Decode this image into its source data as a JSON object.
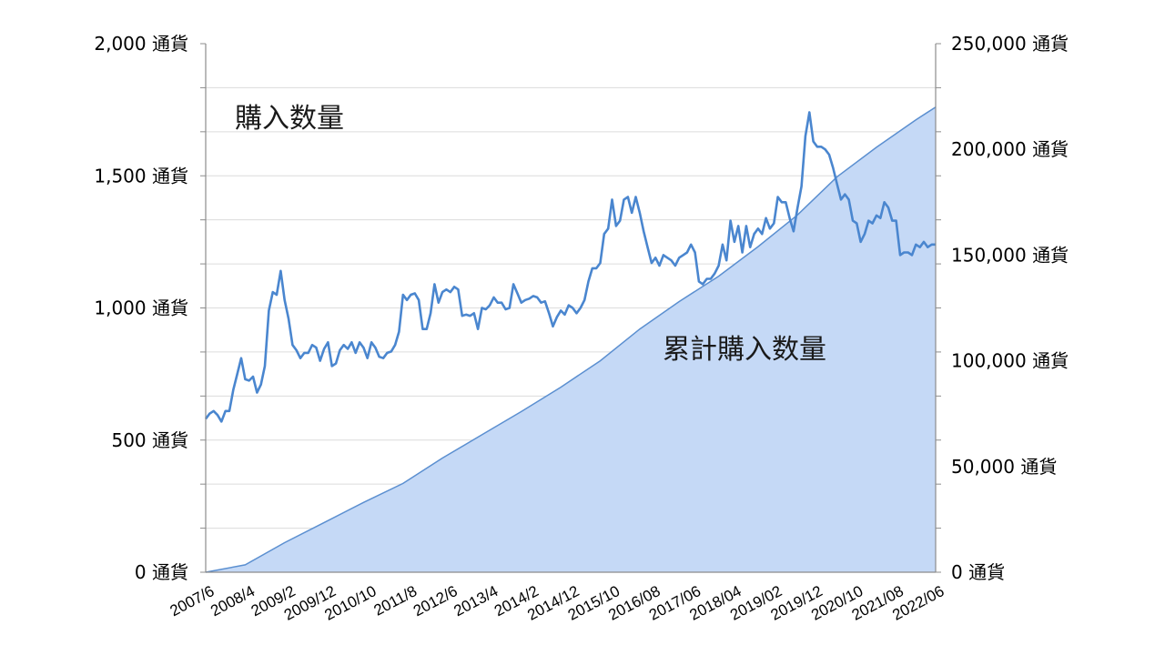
{
  "chart_data": {
    "type": "line",
    "secondary_type": "area",
    "x_tick_labels": [
      "2007/6",
      "2008/4",
      "2009/2",
      "2009/12",
      "2010/10",
      "2011/8",
      "2012/6",
      "2013/4",
      "2014/2",
      "2014/12",
      "2015/10",
      "2016/08",
      "2017/06",
      "2018/04",
      "2019/02",
      "2019/12",
      "2020/10",
      "2021/08",
      "2022/06"
    ],
    "x_range": [
      "2007/6",
      "2023/01"
    ],
    "left_axis": {
      "ticks": [
        {
          "value": 0,
          "label": "0 通貨"
        },
        {
          "value": 500,
          "label": "500 通貨"
        },
        {
          "value": 1000,
          "label": "1,000 通貨"
        },
        {
          "value": 1500,
          "label": "1,500 通貨"
        },
        {
          "value": 2000,
          "label": "2,000 通貨"
        }
      ],
      "ylim": [
        0,
        2000
      ],
      "minor_gridlines_step": 166.67
    },
    "right_axis": {
      "ticks": [
        {
          "value": 0,
          "label": "0 通貨"
        },
        {
          "value": 50000,
          "label": "50,000 通貨"
        },
        {
          "value": 100000,
          "label": "100,000 通貨"
        },
        {
          "value": 150000,
          "label": "150,000 通貨"
        },
        {
          "value": 200000,
          "label": "200,000 通貨"
        },
        {
          "value": 250000,
          "label": "250,000 通貨"
        }
      ],
      "ylim": [
        0,
        250000
      ]
    },
    "annotations": [
      {
        "text": "購入数量",
        "series": "monthly"
      },
      {
        "text": "累計購入数量",
        "series": "cumulative"
      }
    ],
    "colors": {
      "line": "#4a86cf",
      "area_fill": "#c5d9f6",
      "area_stroke": "#5b8fd0",
      "grid": "#dcdcdc",
      "axis": "#8c8c8c"
    },
    "series": [
      {
        "key": "monthly",
        "axis": "left",
        "values": [
          [
            0,
            580
          ],
          [
            1,
            600
          ],
          [
            2,
            610
          ],
          [
            3,
            595
          ],
          [
            4,
            570
          ],
          [
            5,
            610
          ],
          [
            6,
            610
          ],
          [
            7,
            690
          ],
          [
            8,
            750
          ],
          [
            9,
            810
          ],
          [
            10,
            730
          ],
          [
            11,
            725
          ],
          [
            12,
            740
          ],
          [
            13,
            680
          ],
          [
            14,
            710
          ],
          [
            15,
            780
          ],
          [
            16,
            990
          ],
          [
            17,
            1060
          ],
          [
            18,
            1050
          ],
          [
            19,
            1140
          ],
          [
            20,
            1030
          ],
          [
            21,
            960
          ],
          [
            22,
            860
          ],
          [
            23,
            840
          ],
          [
            24,
            810
          ],
          [
            25,
            830
          ],
          [
            26,
            830
          ],
          [
            27,
            860
          ],
          [
            28,
            850
          ],
          [
            29,
            800
          ],
          [
            30,
            845
          ],
          [
            31,
            870
          ],
          [
            32,
            780
          ],
          [
            33,
            790
          ],
          [
            34,
            840
          ],
          [
            35,
            860
          ],
          [
            36,
            845
          ],
          [
            37,
            870
          ],
          [
            38,
            830
          ],
          [
            39,
            870
          ],
          [
            40,
            850
          ],
          [
            41,
            810
          ],
          [
            42,
            870
          ],
          [
            43,
            850
          ],
          [
            44,
            815
          ],
          [
            45,
            810
          ],
          [
            46,
            830
          ],
          [
            47,
            835
          ],
          [
            48,
            860
          ],
          [
            49,
            910
          ],
          [
            50,
            1050
          ],
          [
            51,
            1030
          ],
          [
            52,
            1050
          ],
          [
            53,
            1055
          ],
          [
            54,
            1030
          ],
          [
            55,
            920
          ],
          [
            56,
            920
          ],
          [
            57,
            980
          ],
          [
            58,
            1090
          ],
          [
            59,
            1020
          ],
          [
            60,
            1060
          ],
          [
            61,
            1070
          ],
          [
            62,
            1060
          ],
          [
            63,
            1080
          ],
          [
            64,
            1070
          ],
          [
            65,
            970
          ],
          [
            66,
            975
          ],
          [
            67,
            970
          ],
          [
            68,
            980
          ],
          [
            69,
            920
          ],
          [
            70,
            1000
          ],
          [
            71,
            995
          ],
          [
            72,
            1010
          ],
          [
            73,
            1040
          ],
          [
            74,
            1020
          ],
          [
            75,
            1020
          ],
          [
            76,
            995
          ],
          [
            77,
            1000
          ],
          [
            78,
            1090
          ],
          [
            79,
            1055
          ],
          [
            80,
            1020
          ],
          [
            81,
            1030
          ],
          [
            82,
            1035
          ],
          [
            83,
            1045
          ],
          [
            84,
            1040
          ],
          [
            85,
            1020
          ],
          [
            86,
            1025
          ],
          [
            87,
            980
          ],
          [
            88,
            930
          ],
          [
            89,
            965
          ],
          [
            90,
            990
          ],
          [
            91,
            975
          ],
          [
            92,
            1010
          ],
          [
            93,
            1000
          ],
          [
            94,
            980
          ],
          [
            95,
            1000
          ],
          [
            96,
            1030
          ],
          [
            97,
            1100
          ],
          [
            98,
            1150
          ],
          [
            99,
            1150
          ],
          [
            100,
            1170
          ],
          [
            101,
            1280
          ],
          [
            102,
            1300
          ],
          [
            103,
            1410
          ],
          [
            104,
            1310
          ],
          [
            105,
            1330
          ],
          [
            106,
            1410
          ],
          [
            107,
            1420
          ],
          [
            108,
            1360
          ],
          [
            109,
            1420
          ],
          [
            110,
            1360
          ],
          [
            111,
            1290
          ],
          [
            112,
            1230
          ],
          [
            113,
            1170
          ],
          [
            114,
            1190
          ],
          [
            115,
            1160
          ],
          [
            116,
            1200
          ],
          [
            117,
            1190
          ],
          [
            118,
            1180
          ],
          [
            119,
            1160
          ],
          [
            120,
            1190
          ],
          [
            121,
            1200
          ],
          [
            122,
            1210
          ],
          [
            123,
            1240
          ],
          [
            124,
            1210
          ],
          [
            125,
            1100
          ],
          [
            126,
            1090
          ],
          [
            127,
            1110
          ],
          [
            128,
            1110
          ],
          [
            129,
            1130
          ],
          [
            130,
            1160
          ],
          [
            131,
            1240
          ],
          [
            132,
            1180
          ],
          [
            133,
            1330
          ],
          [
            134,
            1250
          ],
          [
            135,
            1310
          ],
          [
            136,
            1210
          ],
          [
            137,
            1310
          ],
          [
            138,
            1230
          ],
          [
            139,
            1280
          ],
          [
            140,
            1300
          ],
          [
            141,
            1280
          ],
          [
            142,
            1340
          ],
          [
            143,
            1300
          ],
          [
            144,
            1320
          ],
          [
            145,
            1420
          ],
          [
            146,
            1400
          ],
          [
            147,
            1400
          ],
          [
            148,
            1340
          ],
          [
            149,
            1290
          ],
          [
            150,
            1380
          ],
          [
            151,
            1460
          ],
          [
            152,
            1650
          ],
          [
            153,
            1740
          ],
          [
            154,
            1630
          ],
          [
            155,
            1610
          ],
          [
            156,
            1610
          ],
          [
            157,
            1600
          ],
          [
            158,
            1580
          ],
          [
            159,
            1530
          ],
          [
            160,
            1470
          ],
          [
            161,
            1410
          ],
          [
            162,
            1430
          ],
          [
            163,
            1410
          ],
          [
            164,
            1330
          ],
          [
            165,
            1320
          ],
          [
            166,
            1250
          ],
          [
            167,
            1280
          ],
          [
            168,
            1330
          ],
          [
            169,
            1320
          ],
          [
            170,
            1350
          ],
          [
            171,
            1340
          ],
          [
            172,
            1400
          ],
          [
            173,
            1380
          ],
          [
            174,
            1330
          ],
          [
            175,
            1330
          ],
          [
            176,
            1200
          ],
          [
            177,
            1210
          ],
          [
            178,
            1210
          ],
          [
            179,
            1200
          ],
          [
            180,
            1240
          ],
          [
            181,
            1230
          ],
          [
            182,
            1250
          ],
          [
            183,
            1230
          ],
          [
            184,
            1240
          ],
          [
            185,
            1240
          ]
        ]
      },
      {
        "key": "cumulative",
        "axis": "right",
        "values": [
          [
            0,
            0
          ],
          [
            10,
            3500
          ],
          [
            20,
            14000
          ],
          [
            30,
            23500
          ],
          [
            40,
            33000
          ],
          [
            50,
            42000
          ],
          [
            60,
            54000
          ],
          [
            70,
            65000
          ],
          [
            80,
            76000
          ],
          [
            90,
            87500
          ],
          [
            100,
            100000
          ],
          [
            110,
            115000
          ],
          [
            120,
            128000
          ],
          [
            130,
            140000
          ],
          [
            140,
            154000
          ],
          [
            150,
            169000
          ],
          [
            160,
            187000
          ],
          [
            170,
            201000
          ],
          [
            180,
            214000
          ],
          [
            185,
            220000
          ]
        ]
      }
    ]
  }
}
